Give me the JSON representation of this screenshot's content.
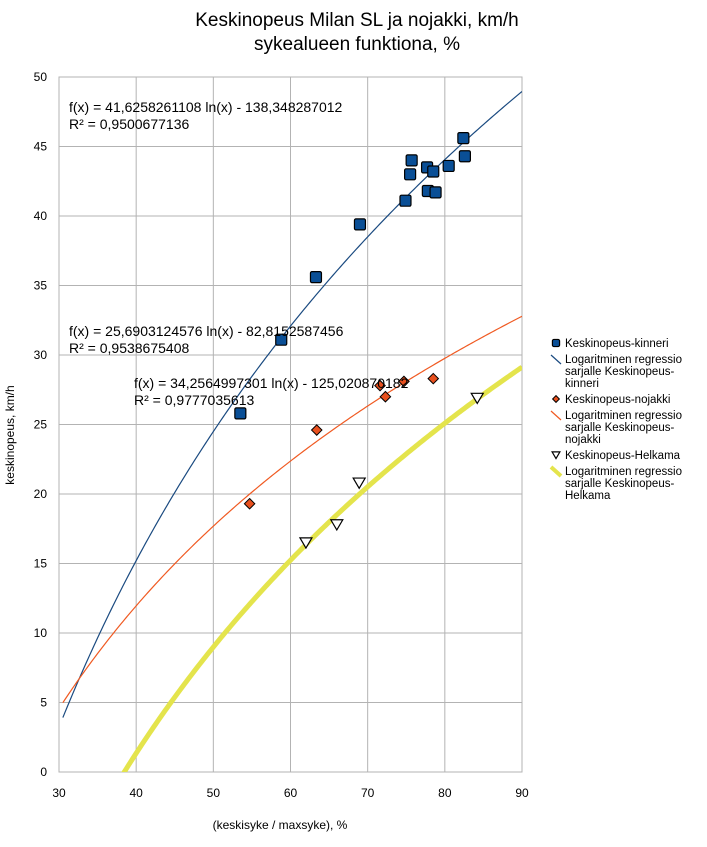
{
  "chart_data": {
    "type": "scatter",
    "title": "Keskinopeus Milan SL ja nojakki, km/h",
    "subtitle": "sykealueen funktiona, %",
    "xlabel": "(keskisyke / maxsyke), %",
    "ylabel": "keskinopeus, km/h",
    "xlim": [
      30,
      90
    ],
    "ylim": [
      0,
      50
    ],
    "xticks": [
      30,
      40,
      50,
      60,
      70,
      80,
      90
    ],
    "yticks": [
      0,
      5,
      10,
      15,
      20,
      25,
      30,
      35,
      40,
      45,
      50
    ],
    "grid": true,
    "legend_position": "right",
    "series": [
      {
        "name": "Keskinopeus-kinneri",
        "marker": "square",
        "color": "#0a4f96",
        "points": [
          [
            53.5,
            25.8
          ],
          [
            58.8,
            31.1
          ],
          [
            63.3,
            35.6
          ],
          [
            69.0,
            39.4
          ],
          [
            74.9,
            41.1
          ],
          [
            75.5,
            43.0
          ],
          [
            75.7,
            44.0
          ],
          [
            77.7,
            43.5
          ],
          [
            77.8,
            41.8
          ],
          [
            78.5,
            43.2
          ],
          [
            78.8,
            41.7
          ],
          [
            80.5,
            43.6
          ],
          [
            82.4,
            45.6
          ],
          [
            82.6,
            44.3
          ]
        ],
        "trend": {
          "label": "Logaritminen regressio sarjalle Keskinopeus-kinneri",
          "a": 41.6258261108,
          "b": -138.348287012,
          "equation": "f(x) = 41,6258261108 ln(x) - 138,348287012",
          "r2": "R² = 0,9500677136",
          "color": "#1a4a80"
        }
      },
      {
        "name": "Keskinopeus-nojakki",
        "marker": "diamond",
        "color": "#e8501e",
        "points": [
          [
            54.7,
            19.3
          ],
          [
            63.4,
            24.6
          ],
          [
            71.6,
            27.8
          ],
          [
            72.3,
            27.0
          ],
          [
            74.7,
            28.1
          ],
          [
            78.5,
            28.3
          ]
        ],
        "trend": {
          "label": "Logaritminen regressio sarjalle Keskinopeus-nojakki",
          "a": 25.6903124576,
          "b": -82.8152587456,
          "equation": "f(x) = 25,6903124576 ln(x) - 82,8152587456",
          "r2": "R² = 0,9538675408",
          "color": "#f05a22"
        }
      },
      {
        "name": "Keskinopeus-Helkama",
        "marker": "triangle-down",
        "color": "#ffffff",
        "points": [
          [
            62.0,
            16.5
          ],
          [
            66.0,
            17.8
          ],
          [
            68.9,
            20.8
          ],
          [
            84.2,
            26.9
          ]
        ],
        "trend": {
          "label": "Logaritminen regressio sarjalle Keskinopeus-Helkama",
          "a": 34.2564997301,
          "b": -125.020870182,
          "equation": "f(x) = 34,2564997301 ln(x) - 125,020870182",
          "r2": "R² = 0,9777035613",
          "color": "#e4e44c"
        }
      }
    ],
    "legend": [
      {
        "kind": "marker",
        "series": 0,
        "lines": [
          "Keskinopeus-kinneri"
        ]
      },
      {
        "kind": "line",
        "series": 0,
        "lines": [
          "Logaritminen regressio",
          "sarjalle Keskinopeus-",
          "kinneri"
        ]
      },
      {
        "kind": "marker",
        "series": 1,
        "lines": [
          "Keskinopeus-nojakki"
        ]
      },
      {
        "kind": "line",
        "series": 1,
        "lines": [
          "Logaritminen regressio",
          "sarjalle Keskinopeus-",
          "nojakki"
        ]
      },
      {
        "kind": "marker",
        "series": 2,
        "lines": [
          "Keskinopeus-Helkama"
        ]
      },
      {
        "kind": "line",
        "series": 2,
        "lines": [
          "Logaritminen regressio",
          "sarjalle Keskinopeus-",
          "Helkama"
        ]
      }
    ]
  }
}
